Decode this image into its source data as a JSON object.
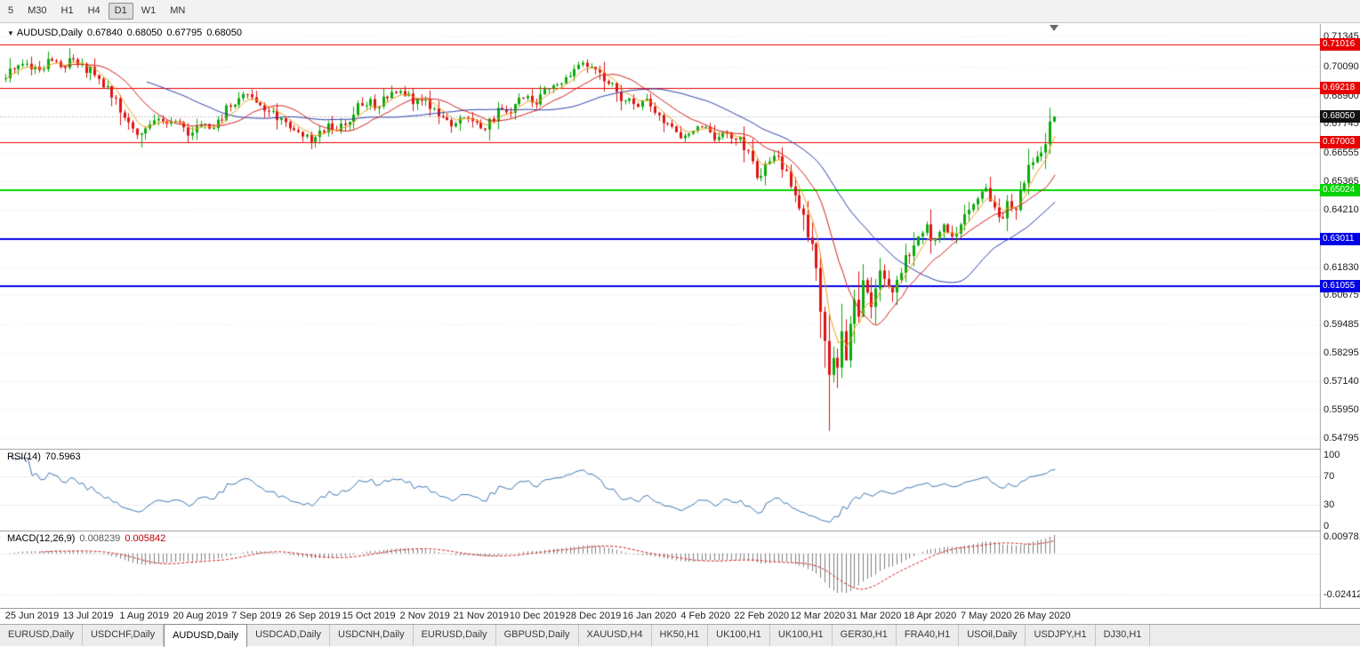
{
  "toolbar": {
    "timeframes": [
      {
        "label": "5",
        "active": false
      },
      {
        "label": "M30",
        "active": false
      },
      {
        "label": "H1",
        "active": false
      },
      {
        "label": "H4",
        "active": false
      },
      {
        "label": "D1",
        "active": true
      },
      {
        "label": "W1",
        "active": false
      },
      {
        "label": "MN",
        "active": false
      }
    ]
  },
  "chart": {
    "symbol_label": "AUDUSD,Daily",
    "ohlc": {
      "open": "0.67840",
      "high": "0.68050",
      "low": "0.67795",
      "close": "0.68050"
    },
    "price_axis_labels": [
      "0.71345",
      "0.70090",
      "0.68900",
      "0.67745",
      "0.66555",
      "0.65365",
      "0.64210",
      "0.63020",
      "0.61830",
      "0.60675",
      "0.59485",
      "0.58295",
      "0.57140",
      "0.55950",
      "0.54795"
    ],
    "hlines": [
      {
        "price": 0.71016,
        "label": "0.71016",
        "color": "#e80000",
        "width": 1
      },
      {
        "price": 0.69218,
        "label": "0.69218",
        "color": "#e80000",
        "width": 1
      },
      {
        "price": 0.67003,
        "label": "0.67003",
        "color": "#e80000",
        "width": 1
      },
      {
        "price": 0.65024,
        "label": "0.65024",
        "color": "#00d400",
        "width": 2
      },
      {
        "price": 0.63011,
        "label": "0.63011",
        "color": "#0000e6",
        "width": 2
      },
      {
        "price": 0.61055,
        "label": "0.61055",
        "color": "#0000e6",
        "width": 2
      }
    ],
    "current_price": {
      "label": "0.68050",
      "value": 0.6805,
      "badge_color": "#111111",
      "line_color": "#999999"
    },
    "date_labels": [
      "25 Jun 2019",
      "13 Jul 2019",
      "1 Aug 2019",
      "20 Aug 2019",
      "7 Sep 2019",
      "26 Sep 2019",
      "15 Oct 2019",
      "2 Nov 2019",
      "21 Nov 2019",
      "10 Dec 2019",
      "28 Dec 2019",
      "16 Jan 2020",
      "4 Feb 2020",
      "22 Feb 2020",
      "12 Mar 2020",
      "31 Mar 2020",
      "18 Apr 2020",
      "7 May 2020",
      "26 May 2020"
    ]
  },
  "rsi": {
    "name": "RSI(14)",
    "value": "70.5963",
    "period": 14,
    "axis_labels": [
      "100",
      "70",
      "30",
      "0"
    ],
    "axis_values": [
      100,
      70,
      30,
      0
    ],
    "levels": [
      70,
      30
    ],
    "color": "#4076b4"
  },
  "macd": {
    "name": "MACD(12,26,9)",
    "main_value": "0.008239",
    "signal_value": "0.005842",
    "fast": 12,
    "slow": 26,
    "signal_period": 9,
    "axis_labels": [
      "0.009781",
      "-0.02412"
    ],
    "axis_values": [
      0.009781,
      -0.02412
    ],
    "histogram_color": "#7f7f7f",
    "signal_color": "#d02020"
  },
  "tabs": {
    "items": [
      {
        "label": "EURUSD,Daily",
        "active": false
      },
      {
        "label": "USDCHF,Daily",
        "active": false
      },
      {
        "label": "AUDUSD,Daily",
        "active": true
      },
      {
        "label": "USDCAD,Daily",
        "active": false
      },
      {
        "label": "USDCNH,Daily",
        "active": false
      },
      {
        "label": "EURUSD,Daily",
        "active": false
      },
      {
        "label": "GBPUSD,Daily",
        "active": false
      },
      {
        "label": "XAUUSD,H4",
        "active": false
      },
      {
        "label": "HK50,H1",
        "active": false
      },
      {
        "label": "UK100,H1",
        "active": false
      },
      {
        "label": "UK100,H1",
        "active": false
      },
      {
        "label": "GER30,H1",
        "active": false
      },
      {
        "label": "FRA40,H1",
        "active": false
      },
      {
        "label": "USOil,Daily",
        "active": false
      },
      {
        "label": "USDJPY,H1",
        "active": false
      },
      {
        "label": "DJ30,H1",
        "active": false
      }
    ]
  },
  "chart_data": {
    "type": "candlestick",
    "symbol": "AUDUSD",
    "timeframe": "Daily",
    "price_range": [
      0.54795,
      0.71345
    ],
    "bars": 248,
    "seed": 9,
    "noise_base": 0.0009,
    "up_color": "#0caa0c",
    "down_color": "#e01414",
    "ma": [
      {
        "type": "sma",
        "period": 34,
        "color": "#2b3fae"
      },
      {
        "type": "sma",
        "period": 14,
        "color": "#d42020"
      },
      {
        "type": "ema",
        "period": 5,
        "color": "#efa020"
      }
    ],
    "anchors": [
      [
        0,
        0.6962
      ],
      [
        2,
        0.7
      ],
      [
        5,
        0.7022
      ],
      [
        8,
        0.6996
      ],
      [
        11,
        0.7035
      ],
      [
        14,
        0.7005
      ],
      [
        16,
        0.704
      ],
      [
        18,
        0.7022
      ],
      [
        21,
        0.6975
      ],
      [
        24,
        0.693
      ],
      [
        26,
        0.688
      ],
      [
        28,
        0.68
      ],
      [
        30,
        0.6755
      ],
      [
        32,
        0.6735
      ],
      [
        34,
        0.6772
      ],
      [
        36,
        0.6795
      ],
      [
        38,
        0.6775
      ],
      [
        40,
        0.6786
      ],
      [
        42,
        0.676
      ],
      [
        44,
        0.6738
      ],
      [
        46,
        0.677
      ],
      [
        48,
        0.6755
      ],
      [
        50,
        0.6792
      ],
      [
        53,
        0.6845
      ],
      [
        55,
        0.688
      ],
      [
        57,
        0.6896
      ],
      [
        59,
        0.6862
      ],
      [
        62,
        0.6826
      ],
      [
        64,
        0.679
      ],
      [
        67,
        0.6756
      ],
      [
        70,
        0.6722
      ],
      [
        72,
        0.67
      ],
      [
        74,
        0.6746
      ],
      [
        76,
        0.6776
      ],
      [
        78,
        0.6746
      ],
      [
        80,
        0.677
      ],
      [
        82,
        0.6812
      ],
      [
        84,
        0.685
      ],
      [
        86,
        0.6876
      ],
      [
        88,
        0.6846
      ],
      [
        90,
        0.688
      ],
      [
        92,
        0.6902
      ],
      [
        94,
        0.689
      ],
      [
        96,
        0.6856
      ],
      [
        98,
        0.687
      ],
      [
        100,
        0.6836
      ],
      [
        102,
        0.6806
      ],
      [
        104,
        0.679
      ],
      [
        106,
        0.6776
      ],
      [
        108,
        0.68
      ],
      [
        110,
        0.6786
      ],
      [
        112,
        0.6756
      ],
      [
        114,
        0.6796
      ],
      [
        116,
        0.684
      ],
      [
        118,
        0.6822
      ],
      [
        120,
        0.6856
      ],
      [
        122,
        0.688
      ],
      [
        124,
        0.6862
      ],
      [
        126,
        0.6896
      ],
      [
        128,
        0.692
      ],
      [
        130,
        0.6936
      ],
      [
        132,
        0.6966
      ],
      [
        134,
        0.7
      ],
      [
        136,
        0.7026
      ],
      [
        138,
        0.701
      ],
      [
        140,
        0.6986
      ],
      [
        142,
        0.694
      ],
      [
        144,
        0.6906
      ],
      [
        146,
        0.687
      ],
      [
        148,
        0.6856
      ],
      [
        150,
        0.687
      ],
      [
        152,
        0.6846
      ],
      [
        154,
        0.681
      ],
      [
        156,
        0.6776
      ],
      [
        158,
        0.674
      ],
      [
        160,
        0.6726
      ],
      [
        162,
        0.6746
      ],
      [
        164,
        0.676
      ],
      [
        166,
        0.674
      ],
      [
        168,
        0.672
      ],
      [
        170,
        0.6736
      ],
      [
        172,
        0.671
      ],
      [
        174,
        0.6666
      ],
      [
        176,
        0.662
      ],
      [
        178,
        0.656
      ],
      [
        180,
        0.662
      ],
      [
        182,
        0.664
      ],
      [
        184,
        0.658
      ],
      [
        186,
        0.648
      ],
      [
        188,
        0.64
      ],
      [
        189,
        0.6306
      ],
      [
        190,
        0.628
      ],
      [
        191,
        0.618
      ],
      [
        192,
        0.6
      ],
      [
        193,
        0.588
      ],
      [
        194,
        0.574
      ],
      [
        195,
        0.581
      ],
      [
        196,
        0.577
      ],
      [
        197,
        0.592
      ],
      [
        198,
        0.58
      ],
      [
        199,
        0.595
      ],
      [
        200,
        0.605
      ],
      [
        201,
        0.598
      ],
      [
        202,
        0.613
      ],
      [
        203,
        0.608
      ],
      [
        204,
        0.602
      ],
      [
        205,
        0.6096
      ],
      [
        206,
        0.617
      ],
      [
        207,
        0.6136
      ],
      [
        209,
        0.608
      ],
      [
        211,
        0.616
      ],
      [
        213,
        0.623
      ],
      [
        215,
        0.631
      ],
      [
        217,
        0.636
      ],
      [
        219,
        0.63
      ],
      [
        221,
        0.636
      ],
      [
        223,
        0.631
      ],
      [
        225,
        0.636
      ],
      [
        227,
        0.642
      ],
      [
        229,
        0.6466
      ],
      [
        231,
        0.651
      ],
      [
        233,
        0.643
      ],
      [
        234,
        0.639
      ],
      [
        236,
        0.6456
      ],
      [
        238,
        0.642
      ],
      [
        240,
        0.653
      ],
      [
        242,
        0.6616
      ],
      [
        243,
        0.664
      ],
      [
        244,
        0.6656
      ],
      [
        245,
        0.669
      ],
      [
        246,
        0.6784
      ],
      [
        247,
        0.6805
      ]
    ],
    "overrides": [
      {
        "i": 32,
        "low": 0.6677
      },
      {
        "i": 72,
        "low": 0.667
      },
      {
        "i": 194,
        "low": 0.551
      },
      {
        "i": 247,
        "open": 0.6784,
        "high": 0.6805,
        "low": 0.67795,
        "close": 0.6805
      }
    ]
  }
}
